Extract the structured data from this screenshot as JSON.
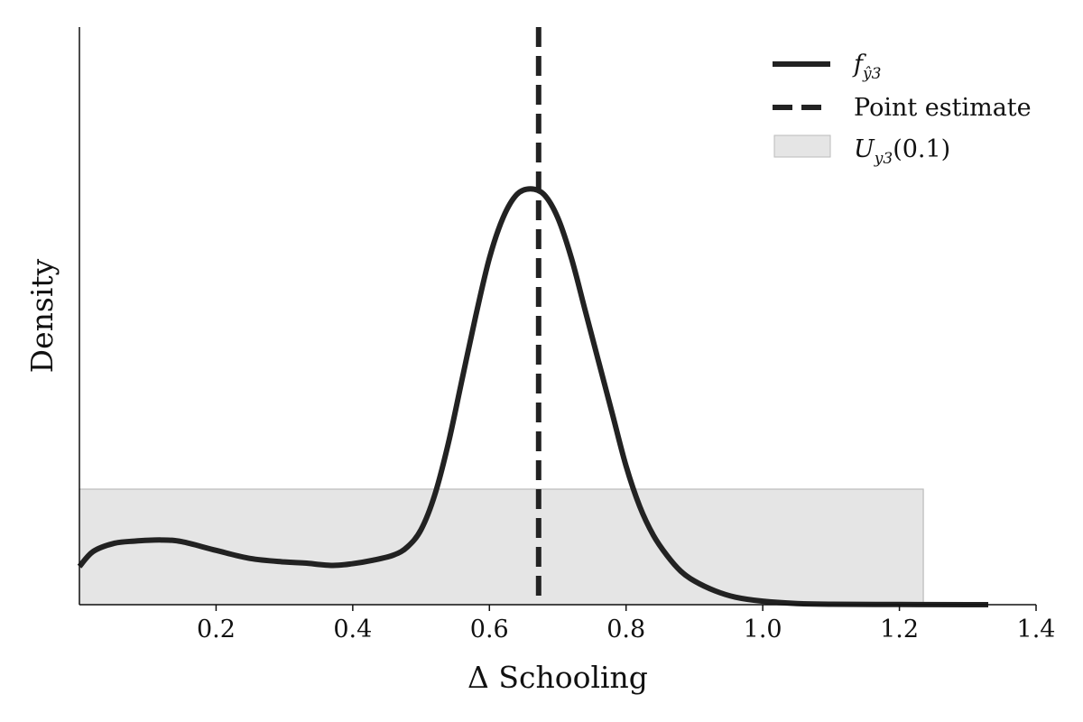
{
  "chart_data": {
    "type": "line",
    "title": "",
    "xlabel": "Δ Schooling",
    "ylabel": "Density",
    "xlim": [
      0.0,
      1.4
    ],
    "ylim": [
      0.0,
      1.0
    ],
    "grid": false,
    "legend_position": "top-right",
    "x_ticks": [
      0.2,
      0.4,
      0.6,
      0.8,
      1.0,
      1.2,
      1.4
    ],
    "x_tick_labels": [
      "0.2",
      "0.4",
      "0.6",
      "0.8",
      "1.0",
      "1.2",
      "1.4"
    ],
    "series": [
      {
        "name": "f_{ŷ3}",
        "style": "solid",
        "color": "#222222",
        "x": [
          0.0,
          0.02,
          0.05,
          0.08,
          0.12,
          0.15,
          0.2,
          0.25,
          0.3,
          0.33,
          0.37,
          0.4,
          0.43,
          0.46,
          0.48,
          0.5,
          0.52,
          0.54,
          0.56,
          0.58,
          0.6,
          0.62,
          0.64,
          0.66,
          0.68,
          0.7,
          0.72,
          0.74,
          0.76,
          0.78,
          0.8,
          0.82,
          0.84,
          0.86,
          0.88,
          0.9,
          0.93,
          0.96,
          1.0,
          1.05,
          1.1,
          1.2,
          1.3,
          1.33
        ],
        "y": [
          0.066,
          0.092,
          0.106,
          0.11,
          0.112,
          0.109,
          0.094,
          0.08,
          0.074,
          0.072,
          0.068,
          0.071,
          0.077,
          0.086,
          0.1,
          0.13,
          0.19,
          0.28,
          0.39,
          0.5,
          0.6,
          0.67,
          0.71,
          0.72,
          0.71,
          0.67,
          0.6,
          0.51,
          0.42,
          0.33,
          0.24,
          0.17,
          0.12,
          0.085,
          0.058,
          0.041,
          0.024,
          0.013,
          0.006,
          0.002,
          0.0008,
          0.0003,
          0.0001,
          0.0001
        ]
      }
    ],
    "point_estimate": {
      "name": "Point estimate",
      "x": 0.672,
      "style": "dashed",
      "color": "#222222"
    },
    "band": {
      "name": "U_{y3}(0.1)",
      "x_range": [
        0.0,
        1.235
      ],
      "y_top": 0.2,
      "color": "#e5e5e5",
      "edge_color": "#bbbbbb"
    }
  },
  "legend": {
    "entry1_main": "f",
    "entry1_sub": "ŷ3",
    "entry2": "Point estimate",
    "entry3_main": "U",
    "entry3_sub": "y3",
    "entry3_rest": "(0.1)"
  }
}
